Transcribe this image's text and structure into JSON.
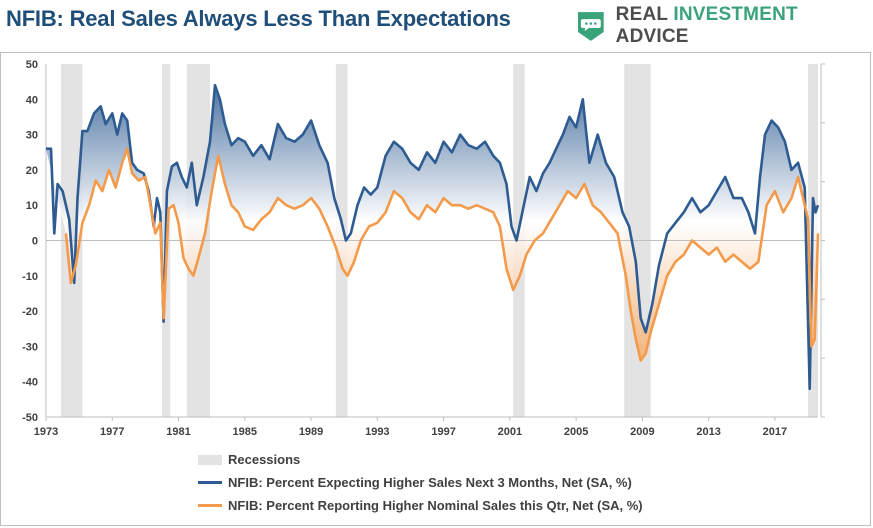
{
  "header": {
    "title": "NFIB: Real Sales Always Less Than Expectations",
    "brand_real": "REAL ",
    "brand_investment": "INVESTMENT",
    "brand_advice": " ADVICE",
    "brand_icon": "chat-bubble-shield-icon",
    "brand_color": "#3aa37a"
  },
  "chart_data": {
    "type": "line",
    "xlim": [
      1973,
      2019.6
    ],
    "ylim": [
      -50,
      50
    ],
    "y_ticks": [
      "50",
      "40",
      "30",
      "20",
      "10",
      "0",
      "-10",
      "-20",
      "-30",
      "-40",
      "-50"
    ],
    "x_ticks": [
      "1973",
      "1977",
      "1981",
      "1985",
      "1989",
      "1993",
      "1997",
      "2001",
      "2005",
      "2009",
      "2013",
      "2017"
    ],
    "grid": false,
    "legend_position": "bottom",
    "recessions": {
      "name": "Recessions",
      "color": "#e3e3e3",
      "periods": [
        [
          1973.9,
          1975.2
        ],
        [
          1980.0,
          1980.5
        ],
        [
          1981.5,
          1982.9
        ],
        [
          1990.5,
          1991.2
        ],
        [
          2001.2,
          2001.9
        ],
        [
          2007.9,
          2009.5
        ],
        [
          2019.0,
          2019.6
        ]
      ]
    },
    "series": [
      {
        "name": "NFIB: Percent Expecting Higher Sales Next 3 Months, Net (SA, %)",
        "color": "#2e5c92",
        "x": [
          1973.0,
          1973.3,
          1973.5,
          1973.7,
          1974.0,
          1974.4,
          1974.7,
          1974.9,
          1975.2,
          1975.5,
          1975.9,
          1976.3,
          1976.6,
          1977.0,
          1977.3,
          1977.6,
          1977.9,
          1978.2,
          1978.5,
          1978.9,
          1979.2,
          1979.5,
          1979.7,
          1979.9,
          1980.1,
          1980.3,
          1980.6,
          1980.9,
          1981.2,
          1981.5,
          1981.8,
          1982.1,
          1982.5,
          1982.9,
          1983.2,
          1983.5,
          1983.8,
          1984.2,
          1984.6,
          1985.0,
          1985.5,
          1986.0,
          1986.5,
          1987.0,
          1987.5,
          1988.0,
          1988.5,
          1989.0,
          1989.5,
          1990.0,
          1990.4,
          1990.8,
          1991.1,
          1991.4,
          1991.8,
          1992.2,
          1992.6,
          1993.0,
          1993.5,
          1994.0,
          1994.5,
          1995.0,
          1995.5,
          1996.0,
          1996.5,
          1997.0,
          1997.5,
          1998.0,
          1998.5,
          1999.0,
          1999.5,
          2000.0,
          2000.4,
          2000.8,
          2001.1,
          2001.4,
          2001.8,
          2002.2,
          2002.6,
          2003.0,
          2003.4,
          2003.8,
          2004.2,
          2004.6,
          2005.0,
          2005.4,
          2005.8,
          2006.3,
          2006.8,
          2007.3,
          2007.8,
          2008.2,
          2008.6,
          2008.9,
          2009.2,
          2009.6,
          2010.0,
          2010.5,
          2011.0,
          2011.5,
          2012.0,
          2012.5,
          2013.0,
          2013.5,
          2014.0,
          2014.5,
          2015.0,
          2015.4,
          2015.8,
          2016.1,
          2016.4,
          2016.8,
          2017.2,
          2017.6,
          2018.0,
          2018.4,
          2018.8,
          2019.1,
          2019.3,
          2019.45,
          2019.6
        ],
        "y": [
          26,
          26,
          2,
          16,
          14,
          6,
          -12,
          12,
          31,
          31,
          36,
          38,
          33,
          36,
          30,
          36,
          34,
          22,
          20,
          19,
          14,
          4,
          12,
          8,
          -23,
          14,
          21,
          22,
          18,
          15,
          22,
          10,
          18,
          28,
          44,
          40,
          33,
          27,
          29,
          28,
          24,
          27,
          23,
          33,
          29,
          28,
          30,
          34,
          27,
          22,
          12,
          6,
          0,
          2,
          10,
          15,
          13,
          15,
          24,
          28,
          26,
          22,
          20,
          25,
          22,
          28,
          25,
          30,
          27,
          26,
          28,
          24,
          22,
          16,
          4,
          0,
          9,
          18,
          14,
          19,
          22,
          26,
          30,
          35,
          32,
          40,
          22,
          30,
          22,
          18,
          8,
          4,
          -6,
          -22,
          -26,
          -18,
          -7,
          2,
          5,
          8,
          12,
          8,
          10,
          14,
          18,
          12,
          12,
          8,
          2,
          18,
          30,
          34,
          32,
          28,
          20,
          22,
          15,
          -42,
          12,
          8,
          10
        ]
      },
      {
        "name": "NFIB: Percent Reporting Higher Nominal Sales this Qtr, Net (SA, %)",
        "color": "#f39a4b",
        "x": [
          1974.2,
          1974.5,
          1974.8,
          1975.2,
          1975.6,
          1976.0,
          1976.4,
          1976.8,
          1977.2,
          1977.6,
          1977.9,
          1978.2,
          1978.6,
          1979.0,
          1979.3,
          1979.6,
          1979.9,
          1980.1,
          1980.4,
          1980.7,
          1981.0,
          1981.3,
          1981.6,
          1981.9,
          1982.2,
          1982.6,
          1983.0,
          1983.4,
          1983.8,
          1984.2,
          1984.6,
          1985.0,
          1985.5,
          1986.0,
          1986.5,
          1987.0,
          1987.5,
          1988.0,
          1988.5,
          1989.0,
          1989.5,
          1990.0,
          1990.5,
          1990.9,
          1991.2,
          1991.6,
          1992.0,
          1992.5,
          1993.0,
          1993.5,
          1994.0,
          1994.5,
          1995.0,
          1995.5,
          1996.0,
          1996.5,
          1997.0,
          1997.5,
          1998.0,
          1998.5,
          1999.0,
          1999.5,
          2000.0,
          2000.4,
          2000.8,
          2001.2,
          2001.6,
          2002.0,
          2002.5,
          2003.0,
          2003.5,
          2004.0,
          2004.5,
          2005.0,
          2005.5,
          2006.0,
          2006.5,
          2007.0,
          2007.5,
          2008.0,
          2008.3,
          2008.6,
          2008.9,
          2009.2,
          2009.5,
          2010.0,
          2010.5,
          2011.0,
          2011.5,
          2012.0,
          2012.5,
          2013.0,
          2013.5,
          2014.0,
          2014.5,
          2015.0,
          2015.5,
          2016.0,
          2016.5,
          2017.0,
          2017.5,
          2018.0,
          2018.4,
          2018.8,
          2019.0,
          2019.2,
          2019.4,
          2019.6
        ],
        "y": [
          2,
          -12,
          -7,
          5,
          10,
          17,
          14,
          20,
          15,
          22,
          26,
          19,
          17,
          18,
          10,
          2,
          5,
          -22,
          9,
          10,
          5,
          -5,
          -8,
          -10,
          -5,
          2,
          14,
          24,
          16,
          10,
          8,
          4,
          3,
          6,
          8,
          12,
          10,
          9,
          10,
          12,
          9,
          4,
          -2,
          -8,
          -10,
          -6,
          0,
          4,
          5,
          8,
          14,
          12,
          8,
          6,
          10,
          8,
          12,
          10,
          10,
          9,
          10,
          9,
          8,
          4,
          -8,
          -14,
          -10,
          -4,
          0,
          2,
          6,
          10,
          14,
          12,
          16,
          10,
          8,
          5,
          2,
          -10,
          -20,
          -28,
          -34,
          -32,
          -26,
          -18,
          -10,
          -6,
          -4,
          0,
          -2,
          -4,
          -2,
          -6,
          -4,
          -6,
          -8,
          -6,
          10,
          14,
          8,
          12,
          18,
          10,
          6,
          -30,
          -28,
          2
        ]
      }
    ]
  }
}
